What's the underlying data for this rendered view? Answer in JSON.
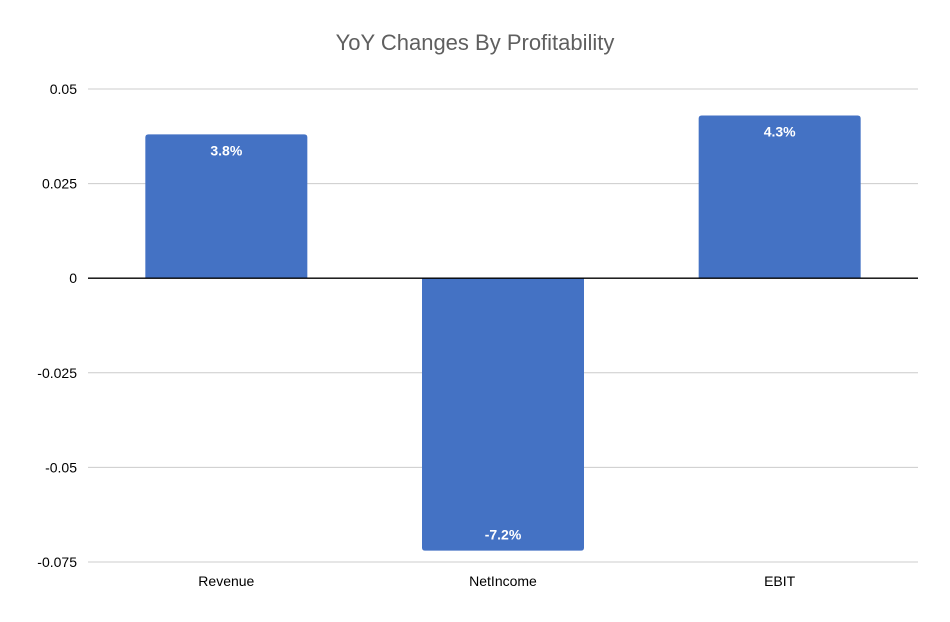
{
  "chart_data": {
    "type": "bar",
    "title": "YoY Changes By Profitability",
    "xlabel": "",
    "ylabel": "",
    "categories": [
      "Revenue",
      "NetIncome",
      "EBIT"
    ],
    "values": [
      0.038,
      -0.072,
      0.043
    ],
    "data_labels": [
      "3.8%",
      "-7.2%",
      "4.3%"
    ],
    "ylim": [
      -0.075,
      0.05
    ],
    "yticks": [
      0.05,
      0.025,
      0,
      -0.025,
      -0.05,
      -0.075
    ],
    "ytick_labels": [
      "0.05",
      "0.025",
      "0",
      "-0.025",
      "-0.05",
      "-0.075"
    ],
    "grid": true,
    "legend": "none",
    "colors": {
      "bar": "#4472C4",
      "grid": "#cccccc",
      "zero_line": "#000000",
      "title": "#5f5f5f"
    }
  }
}
